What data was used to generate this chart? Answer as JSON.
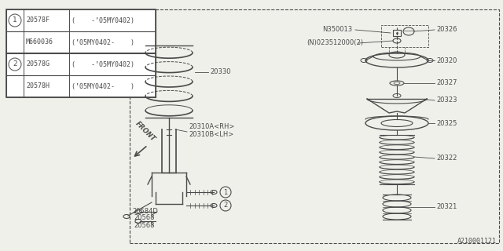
{
  "bg_color": "#f0f0eb",
  "line_color": "#4a4a4a",
  "table_rows": [
    {
      "circle": "1",
      "col1": "20578F",
      "col2": "(    -’05MY0402)"
    },
    {
      "circle": "",
      "col1": "M660036",
      "col2": "(’05MY0402-    )"
    },
    {
      "circle": "2",
      "col1": "20578G",
      "col2": "(    -’05MY0402)"
    },
    {
      "circle": "",
      "col1": "20578H",
      "col2": "(’05MY0402-    )"
    }
  ],
  "watermark": "A210001121",
  "label_20330": "20330",
  "label_20310a": "20310A<RH>",
  "label_20310b": "20310B<LH>",
  "label_20584d": "20584D",
  "label_20568a": "20568",
  "label_20568b": "20568",
  "label_N350013": "N350013",
  "label_20326": "20326",
  "label_N023512000": "(N)023512000(2)",
  "label_20320": "20320",
  "label_20327": "20327",
  "label_20323": "20323",
  "label_20325": "20325",
  "label_20322": "20322",
  "label_20321": "20321",
  "front_text": "FRONT"
}
